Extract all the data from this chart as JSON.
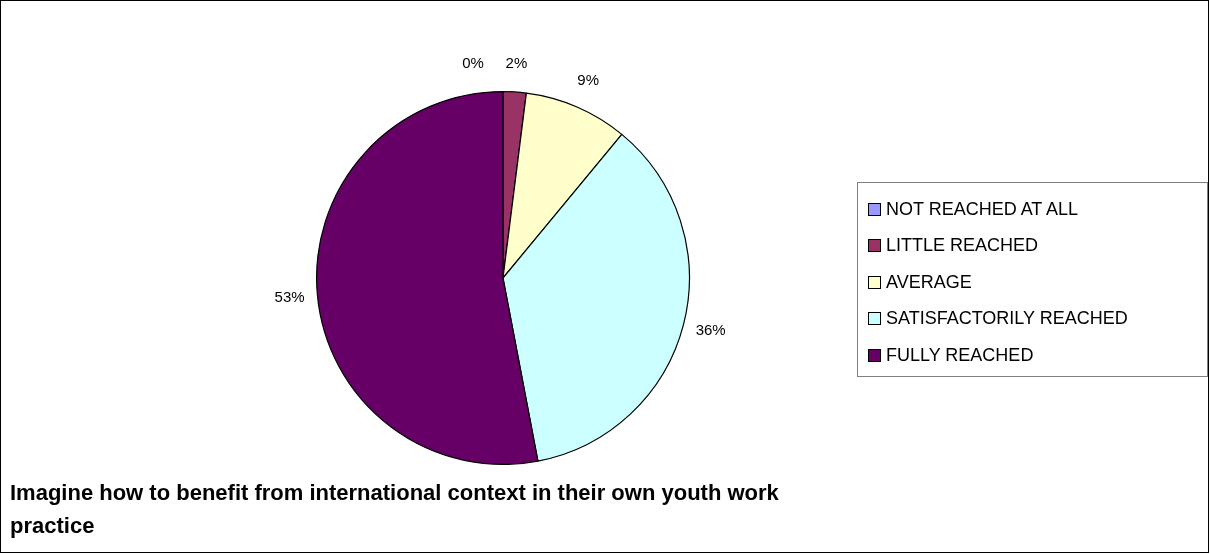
{
  "chart_data": {
    "type": "pie",
    "title": "Imagine how to benefit from international context in their own youth work practice",
    "categories": [
      "NOT REACHED AT ALL",
      "LITTLE REACHED",
      "AVERAGE",
      "SATISFACTORILY REACHED",
      "FULLY REACHED"
    ],
    "values": [
      0,
      2,
      9,
      36,
      53
    ],
    "value_labels": [
      "0%",
      "2%",
      "9%",
      "36%",
      "53%"
    ],
    "colors": [
      "#9999ff",
      "#993366",
      "#ffffcc",
      "#ccffff",
      "#660066"
    ],
    "legend": "right"
  }
}
